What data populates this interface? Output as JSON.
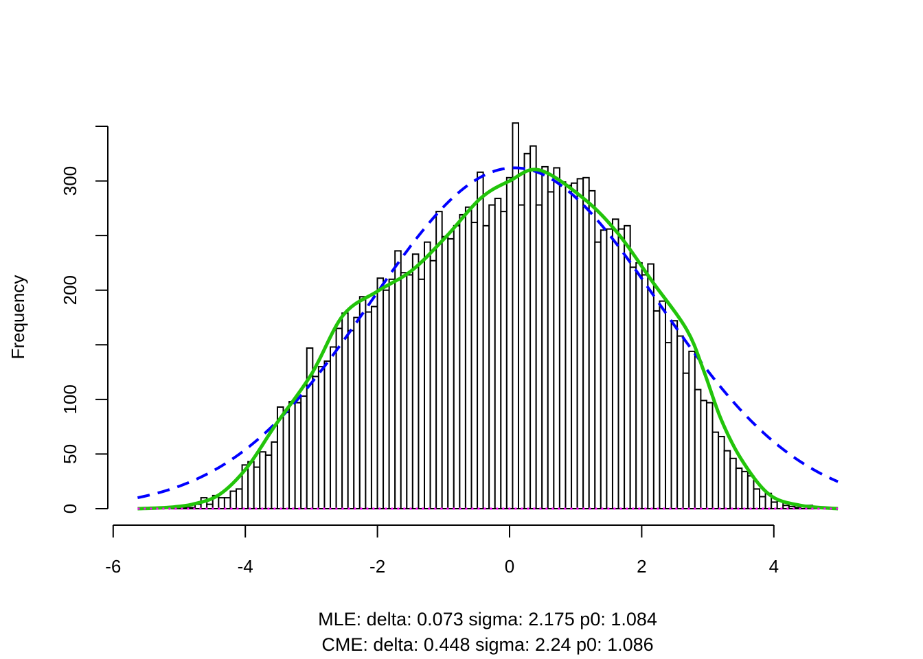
{
  "chart_data": {
    "type": "bar",
    "subtype": "histogram",
    "title": "",
    "xlabel": "",
    "ylabel": "Frequency",
    "subtitle_lines": [
      "MLE: delta: 0.073 sigma: 2.175 p0: 1.084",
      "CME: delta: 0.448 sigma: 2.24 p0: 1.086"
    ],
    "xlim": [
      -6,
      5
    ],
    "ylim": [
      0,
      350
    ],
    "x_ticks": [
      -6,
      -4,
      -2,
      0,
      2,
      4
    ],
    "x_tick_labels": [
      "-6",
      "-4",
      "-2",
      "0",
      "2",
      "4"
    ],
    "y_ticks": [
      0,
      50,
      100,
      150,
      200,
      250,
      300,
      350
    ],
    "y_tick_labels": [
      "0",
      "50",
      "100",
      "",
      "200",
      "",
      "300",
      ""
    ],
    "grid": false,
    "bin_start": -5.65,
    "bin_width": 0.089,
    "counts": [
      0,
      0,
      0,
      0,
      0,
      0,
      2,
      1,
      1,
      1,
      4,
      10,
      4,
      12,
      10,
      10,
      16,
      18,
      40,
      43,
      38,
      52,
      49,
      61,
      93,
      88,
      98,
      97,
      103,
      147,
      121,
      130,
      135,
      148,
      165,
      179,
      163,
      175,
      194,
      180,
      185,
      211,
      200,
      210,
      236,
      216,
      214,
      233,
      210,
      244,
      227,
      272,
      249,
      247,
      259,
      269,
      276,
      262,
      308,
      259,
      278,
      284,
      272,
      303,
      353,
      278,
      325,
      332,
      278,
      313,
      290,
      312,
      299,
      296,
      298,
      302,
      303,
      291,
      244,
      255,
      256,
      265,
      256,
      259,
      221,
      225,
      214,
      224,
      181,
      190,
      152,
      172,
      158,
      124,
      144,
      109,
      99,
      97,
      70,
      66,
      53,
      46,
      37,
      34,
      30,
      18,
      11,
      14,
      6,
      7,
      3,
      2,
      1,
      2,
      3,
      1,
      0,
      1
    ],
    "series": [
      {
        "style": "dashed",
        "color": "#0000ff",
        "kind": "normal",
        "mean": 0.073,
        "sd": 2.175,
        "peak": 312,
        "x_range": [
          -5.63,
          4.97
        ]
      },
      {
        "style": "solid",
        "color": "#22c40a",
        "points": [
          [
            -5.63,
            0
          ],
          [
            -5.2,
            1
          ],
          [
            -4.8,
            4
          ],
          [
            -4.39,
            13
          ],
          [
            -3.97,
            38
          ],
          [
            -3.55,
            76
          ],
          [
            -3.0,
            123
          ],
          [
            -2.52,
            177
          ],
          [
            -2.0,
            199
          ],
          [
            -1.48,
            218
          ],
          [
            -0.96,
            249
          ],
          [
            -0.44,
            284
          ],
          [
            0.0,
            300
          ],
          [
            0.45,
            310
          ],
          [
            1.12,
            284
          ],
          [
            1.64,
            252
          ],
          [
            2.16,
            208
          ],
          [
            2.68,
            164
          ],
          [
            2.94,
            126
          ],
          [
            3.2,
            82
          ],
          [
            3.51,
            45
          ],
          [
            3.93,
            13
          ],
          [
            4.4,
            3
          ],
          [
            4.97,
            0
          ]
        ]
      },
      {
        "style": "dotted",
        "color": "#ff00ff",
        "kind": "constant",
        "value": 0,
        "x_range": [
          -5.63,
          4.97
        ]
      }
    ]
  }
}
